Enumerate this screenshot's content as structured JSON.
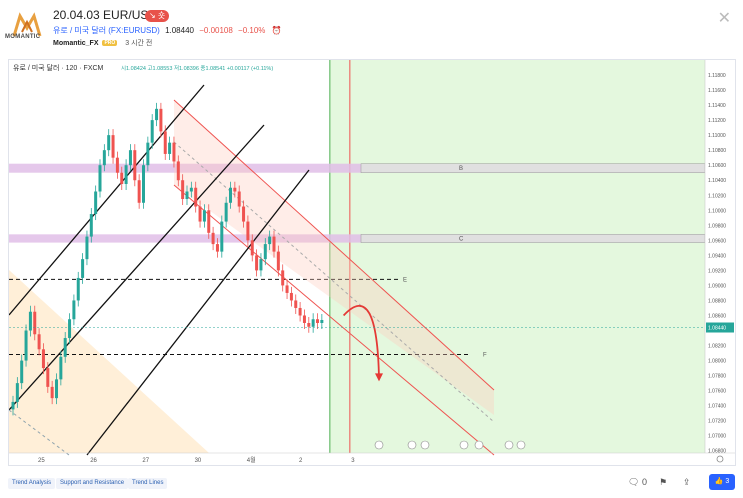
{
  "header": {
    "logo_text": "MOMANTIC",
    "title": "20.04.03 EUR/USD",
    "badge": "↘ 숏",
    "symbol": "유로 / 미국 달러 (FX:EURUSD)",
    "price": "1.08440",
    "change": "−0.00108",
    "change_pct": "−0.10%",
    "author": "Momantic_FX",
    "author_tag": "PRO",
    "timeframe": "3 시간 전"
  },
  "chart_data": {
    "type": "candlestick",
    "legend": "유로 / 미국 달러 · 120 · FXCM",
    "ohlc_text": {
      "o": "시1.08424",
      "h": "고1.08553",
      "l": "저1.08396",
      "c": "종1.08541",
      "chg": "+0.00117 (+0.11%)"
    },
    "ylim": [
      1.0677,
      1.12
    ],
    "y_ticks": [
      "1.11800",
      "1.11600",
      "1.11400",
      "1.11200",
      "1.11000",
      "1.10800",
      "1.10600",
      "1.10400",
      "1.10200",
      "1.10000",
      "1.09800",
      "1.09600",
      "1.09400",
      "1.09200",
      "1.09000",
      "1.08800",
      "1.08600",
      "1.08400",
      "1.08200",
      "1.08000",
      "1.07800",
      "1.07600",
      "1.07400",
      "1.07200",
      "1.07000",
      "1.06800"
    ],
    "current_price_label": "1.08440",
    "x_ticks": [
      {
        "label": "25",
        "i": 0
      },
      {
        "label": "26",
        "i": 12
      },
      {
        "label": "27",
        "i": 24
      },
      {
        "label": "30",
        "i": 36
      },
      {
        "label": "4월",
        "i": 48
      },
      {
        "label": "2",
        "i": 60
      },
      {
        "label": "3",
        "i": 72
      }
    ],
    "candles_close": [
      1.0745,
      1.077,
      1.08,
      1.084,
      1.0865,
      1.0835,
      1.0815,
      1.079,
      1.0765,
      1.075,
      1.0775,
      1.0805,
      1.083,
      1.0855,
      1.088,
      1.091,
      1.0935,
      1.0965,
      1.0995,
      1.1025,
      1.106,
      1.108,
      1.11,
      1.107,
      1.105,
      1.1035,
      1.106,
      1.108,
      1.104,
      1.101,
      1.106,
      1.109,
      1.112,
      1.1135,
      1.1105,
      1.1075,
      1.109,
      1.1065,
      1.104,
      1.1015,
      1.1025,
      1.103,
      1.1005,
      1.0985,
      1.1,
      1.097,
      1.0955,
      1.0945,
      1.0985,
      1.101,
      1.103,
      1.1025,
      1.1005,
      1.0985,
      1.096,
      1.094,
      1.092,
      1.0935,
      1.0955,
      1.0965,
      1.0945,
      1.092,
      1.09,
      1.089,
      1.088,
      1.087,
      1.086,
      1.085,
      1.0845,
      1.0855,
      1.085,
      1.0854
    ],
    "zones": [
      {
        "name": "B",
        "from": 1.105,
        "to": 1.1062
      },
      {
        "name": "C",
        "from": 1.0957,
        "to": 1.0968
      }
    ],
    "levels": [
      {
        "name": "E",
        "y": 1.0908
      },
      {
        "name": "F",
        "y": 1.0808
      }
    ],
    "projection_arrow": {
      "from": [
        76,
        1.086
      ],
      "peak": [
        78,
        1.0875
      ],
      "to": [
        80,
        1.0775
      ]
    }
  },
  "footer": {
    "tags": [
      "Trend Analysis",
      "Support and Resistance",
      "Trend Lines"
    ],
    "comments": "0",
    "likes": "3"
  },
  "colors": {
    "up": "#26a69a",
    "down": "#ef5350",
    "green_zone": "#d9f5d0",
    "channel_red": "#ef5350",
    "zone_pink": "#e1bee7",
    "zone_gray": "#e0e0e0",
    "accent": "#2962ff"
  }
}
